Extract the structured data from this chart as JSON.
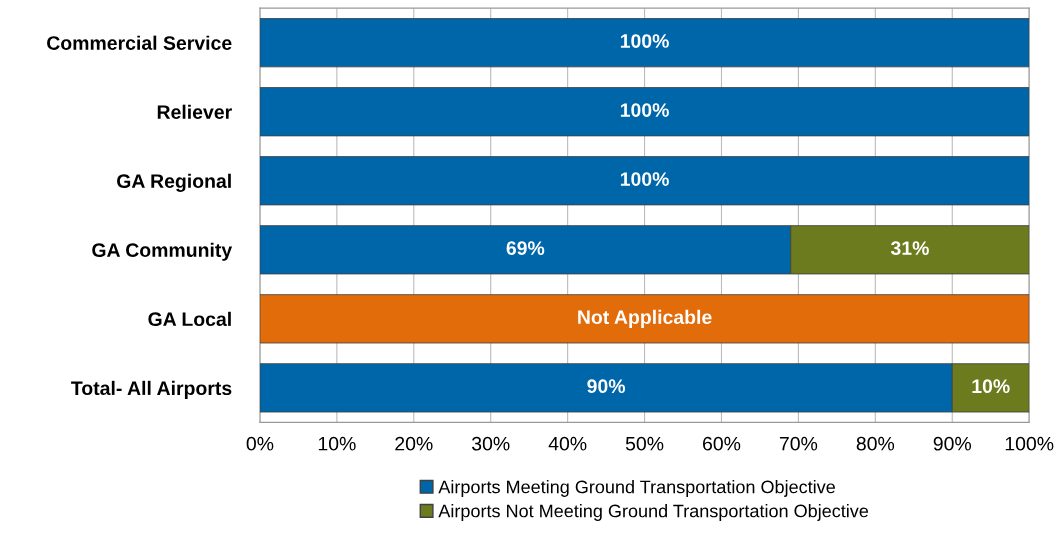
{
  "chart_data": {
    "type": "bar",
    "orientation": "horizontal",
    "stacked": true,
    "categories": [
      "Commercial Service",
      "Reliever",
      "GA Regional",
      "GA Community",
      "GA Local",
      "Total- All Airports"
    ],
    "series": [
      {
        "name": "Airports Meeting Ground Transportation Objective",
        "color": "#0066aa",
        "values": [
          100,
          100,
          100,
          69,
          null,
          90
        ],
        "value_labels": [
          "100%",
          "100%",
          "100%",
          "69%",
          null,
          "90%"
        ]
      },
      {
        "name": "Airports Not Meeting Ground Transportation Objective",
        "color": "#6b7b1e",
        "values": [
          null,
          null,
          null,
          31,
          null,
          10
        ],
        "value_labels": [
          null,
          null,
          null,
          "31%",
          null,
          "10%"
        ]
      },
      {
        "color": "#e36c0a",
        "values": [
          null,
          null,
          null,
          null,
          100,
          null
        ],
        "value_labels": [
          null,
          null,
          null,
          null,
          "Not Applicable",
          null
        ]
      }
    ],
    "xlim": [
      0,
      100
    ],
    "xticks": [
      {
        "value": 0,
        "label": "0%"
      },
      {
        "value": 10,
        "label": "10%"
      },
      {
        "value": 20,
        "label": "20%"
      },
      {
        "value": 30,
        "label": "30%"
      },
      {
        "value": 40,
        "label": "40%"
      },
      {
        "value": 50,
        "label": "50%"
      },
      {
        "value": 60,
        "label": "60%"
      },
      {
        "value": 70,
        "label": "70%"
      },
      {
        "value": 80,
        "label": "80%"
      },
      {
        "value": 90,
        "label": "90%"
      },
      {
        "value": 100,
        "label": "100%"
      }
    ],
    "grid": "x",
    "legend": "bottom"
  }
}
